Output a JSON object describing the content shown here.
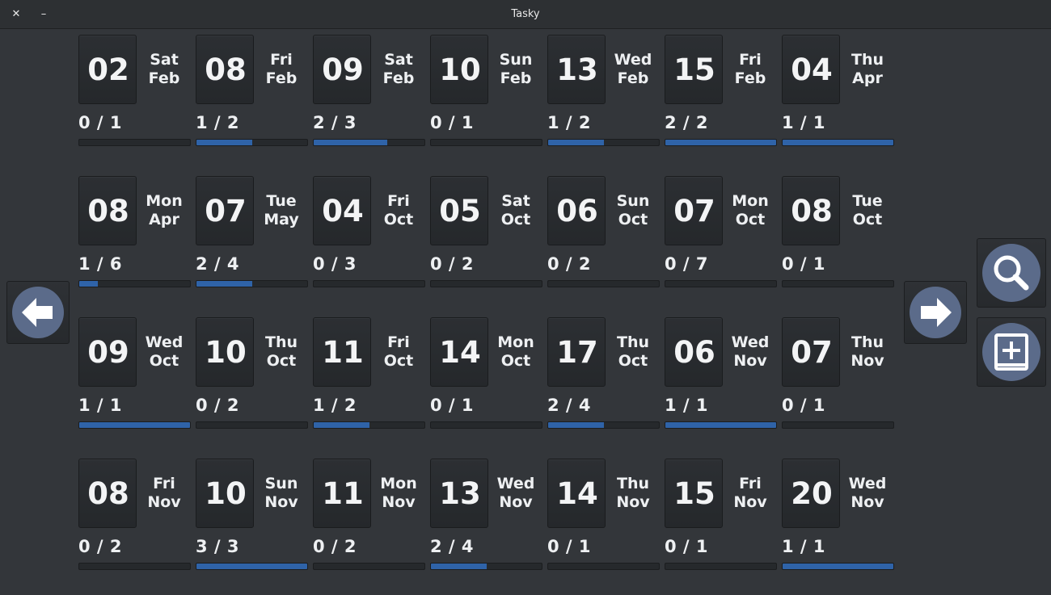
{
  "window": {
    "title": "Tasky",
    "close_label": "✕",
    "minimize_label": "–"
  },
  "days": [
    {
      "day": "02",
      "weekday": "Sat",
      "month": "Feb",
      "done": 0,
      "total": 1,
      "progress_label": "0 / 1"
    },
    {
      "day": "08",
      "weekday": "Fri",
      "month": "Feb",
      "done": 1,
      "total": 2,
      "progress_label": "1 / 2"
    },
    {
      "day": "09",
      "weekday": "Sat",
      "month": "Feb",
      "done": 2,
      "total": 3,
      "progress_label": "2 / 3"
    },
    {
      "day": "10",
      "weekday": "Sun",
      "month": "Feb",
      "done": 0,
      "total": 1,
      "progress_label": "0 / 1"
    },
    {
      "day": "13",
      "weekday": "Wed",
      "month": "Feb",
      "done": 1,
      "total": 2,
      "progress_label": "1 / 2"
    },
    {
      "day": "15",
      "weekday": "Fri",
      "month": "Feb",
      "done": 2,
      "total": 2,
      "progress_label": "2 / 2"
    },
    {
      "day": "04",
      "weekday": "Thu",
      "month": "Apr",
      "done": 1,
      "total": 1,
      "progress_label": "1 / 1"
    },
    {
      "day": "08",
      "weekday": "Mon",
      "month": "Apr",
      "done": 1,
      "total": 6,
      "progress_label": "1 / 6"
    },
    {
      "day": "07",
      "weekday": "Tue",
      "month": "May",
      "done": 2,
      "total": 4,
      "progress_label": "2 / 4"
    },
    {
      "day": "04",
      "weekday": "Fri",
      "month": "Oct",
      "done": 0,
      "total": 3,
      "progress_label": "0 / 3"
    },
    {
      "day": "05",
      "weekday": "Sat",
      "month": "Oct",
      "done": 0,
      "total": 2,
      "progress_label": "0 / 2"
    },
    {
      "day": "06",
      "weekday": "Sun",
      "month": "Oct",
      "done": 0,
      "total": 2,
      "progress_label": "0 / 2"
    },
    {
      "day": "07",
      "weekday": "Mon",
      "month": "Oct",
      "done": 0,
      "total": 7,
      "progress_label": "0 / 7"
    },
    {
      "day": "08",
      "weekday": "Tue",
      "month": "Oct",
      "done": 0,
      "total": 1,
      "progress_label": "0 / 1"
    },
    {
      "day": "09",
      "weekday": "Wed",
      "month": "Oct",
      "done": 1,
      "total": 1,
      "progress_label": "1 / 1"
    },
    {
      "day": "10",
      "weekday": "Thu",
      "month": "Oct",
      "done": 0,
      "total": 2,
      "progress_label": "0 / 2"
    },
    {
      "day": "11",
      "weekday": "Fri",
      "month": "Oct",
      "done": 1,
      "total": 2,
      "progress_label": "1 / 2"
    },
    {
      "day": "14",
      "weekday": "Mon",
      "month": "Oct",
      "done": 0,
      "total": 1,
      "progress_label": "0 / 1"
    },
    {
      "day": "17",
      "weekday": "Thu",
      "month": "Oct",
      "done": 2,
      "total": 4,
      "progress_label": "2 / 4"
    },
    {
      "day": "06",
      "weekday": "Wed",
      "month": "Nov",
      "done": 1,
      "total": 1,
      "progress_label": "1 / 1"
    },
    {
      "day": "07",
      "weekday": "Thu",
      "month": "Nov",
      "done": 0,
      "total": 1,
      "progress_label": "0 / 1"
    },
    {
      "day": "08",
      "weekday": "Fri",
      "month": "Nov",
      "done": 0,
      "total": 2,
      "progress_label": "0 / 2"
    },
    {
      "day": "10",
      "weekday": "Sun",
      "month": "Nov",
      "done": 3,
      "total": 3,
      "progress_label": "3 / 3"
    },
    {
      "day": "11",
      "weekday": "Mon",
      "month": "Nov",
      "done": 0,
      "total": 2,
      "progress_label": "0 / 2"
    },
    {
      "day": "13",
      "weekday": "Wed",
      "month": "Nov",
      "done": 2,
      "total": 4,
      "progress_label": "2 / 4"
    },
    {
      "day": "14",
      "weekday": "Thu",
      "month": "Nov",
      "done": 0,
      "total": 1,
      "progress_label": "0 / 1"
    },
    {
      "day": "15",
      "weekday": "Fri",
      "month": "Nov",
      "done": 0,
      "total": 1,
      "progress_label": "0 / 1"
    },
    {
      "day": "20",
      "weekday": "Wed",
      "month": "Nov",
      "done": 1,
      "total": 1,
      "progress_label": "1 / 1"
    }
  ],
  "navigation": {
    "prev_icon": "arrow-left-icon",
    "next_icon": "arrow-right-icon",
    "search_icon": "search-icon",
    "add_icon": "add-task-icon"
  },
  "colors": {
    "progress_fill": "#2f63a8",
    "icon_circle": "#5b6b8a",
    "background": "#33363a"
  }
}
